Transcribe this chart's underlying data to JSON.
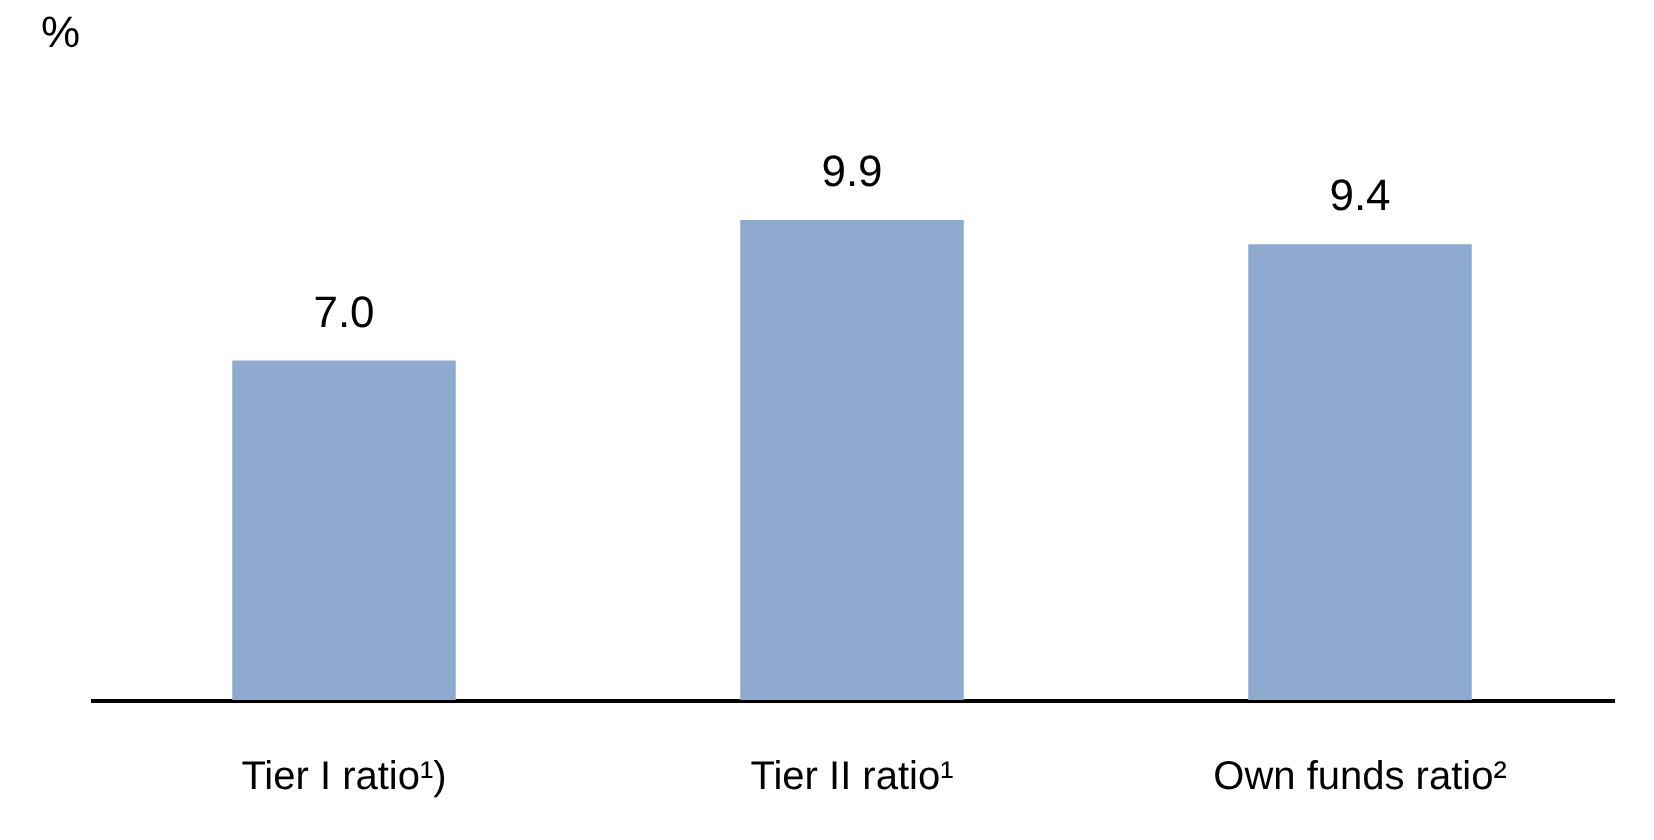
{
  "chart_data": {
    "type": "bar",
    "ylabel": "%",
    "categories": [
      "Tier I ratio¹)",
      "Tier II ratio¹",
      "Own funds ratio²"
    ],
    "series": [
      {
        "color": "#8eaacf",
        "values": [
          7.0,
          9.9,
          9.4
        ],
        "value_labels": [
          "7.0",
          "9.9",
          "9.4"
        ]
      }
    ],
    "tick_labels": "x",
    "grid": false
  }
}
